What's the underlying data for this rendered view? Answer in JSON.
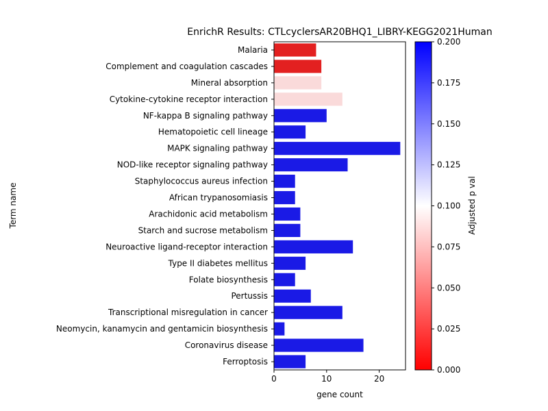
{
  "chart_data": {
    "type": "bar",
    "orientation": "horizontal",
    "title": "EnrichR Results: CTLcyclersAR20BHQ1_LIBRY-KEGG2021Human",
    "xlabel": "gene count",
    "ylabel": "Term name",
    "xlim": [
      0,
      25
    ],
    "xticks": [
      0,
      10,
      20
    ],
    "grid": false,
    "categories": [
      "Malaria",
      "Complement and coagulation cascades",
      "Mineral absorption",
      "Cytokine-cytokine receptor interaction",
      "NF-kappa B signaling pathway",
      "Hematopoietic cell lineage",
      "MAPK signaling pathway",
      "NOD-like receptor signaling pathway",
      "Staphylococcus aureus infection",
      "African trypanosomiasis",
      "Arachidonic acid metabolism",
      "Starch and sucrose metabolism",
      "Neuroactive ligand-receptor interaction",
      "Type II diabetes mellitus",
      "Folate biosynthesis",
      "Pertussis",
      "Transcriptional misregulation in cancer",
      "Neomycin, kanamycin and gentamicin biosynthesis",
      "Coronavirus disease",
      "Ferroptosis"
    ],
    "values": [
      8,
      9,
      9,
      13,
      10,
      6,
      24,
      14,
      4,
      4,
      5,
      5,
      15,
      6,
      4,
      7,
      13,
      2,
      17,
      6
    ],
    "bar_colors": [
      "#e32020",
      "#e32020",
      "#fadada",
      "#fadada",
      "#1a1ae6",
      "#1a1ae6",
      "#1a1ae6",
      "#1a1ae6",
      "#1a1ae6",
      "#1a1ae6",
      "#1a1ae6",
      "#1a1ae6",
      "#1a1ae6",
      "#1a1ae6",
      "#1a1ae6",
      "#1a1ae6",
      "#1a1ae6",
      "#1a1ae6",
      "#1a1ae6",
      "#1a1ae6"
    ],
    "colorbar": {
      "label": "Adjusted p val",
      "range": [
        0,
        0.2
      ],
      "ticks": [
        "0.000",
        "0.025",
        "0.050",
        "0.075",
        "0.100",
        "0.125",
        "0.150",
        "0.175",
        "0.200"
      ],
      "colormap": [
        "#ff0000",
        "#ffffff",
        "#0000ff"
      ]
    }
  }
}
